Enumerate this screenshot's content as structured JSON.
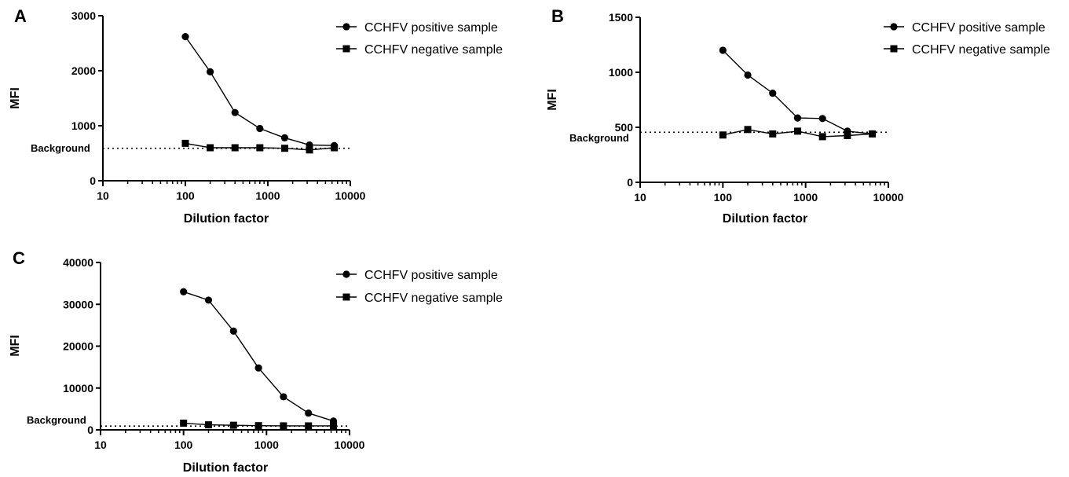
{
  "chart_data": [
    {
      "panel": "A",
      "type": "line",
      "xlabel": "Dilution factor",
      "ylabel": "MFI",
      "xscale": "log",
      "xlim": [
        10,
        10000
      ],
      "xticks": [
        10,
        100,
        1000,
        10000
      ],
      "xtick_labels": [
        "10",
        "100",
        "1000",
        "10000"
      ],
      "ylim": [
        0,
        3000
      ],
      "yticks": [
        0,
        1000,
        2000,
        3000
      ],
      "ytick_labels": [
        "0",
        "1000",
        "2000",
        "3000"
      ],
      "background": {
        "label": "Background",
        "value": 590
      },
      "x": [
        100,
        200,
        400,
        800,
        1600,
        3200,
        6400
      ],
      "series": [
        {
          "name": "CCHFV positive sample",
          "marker": "circle",
          "values": [
            2620,
            1980,
            1240,
            950,
            780,
            650,
            640
          ]
        },
        {
          "name": "CCHFV negative sample",
          "marker": "square",
          "values": [
            680,
            600,
            600,
            600,
            590,
            560,
            600
          ]
        }
      ],
      "grid": false,
      "legend": "right"
    },
    {
      "panel": "B",
      "type": "line",
      "xlabel": "Dilution factor",
      "ylabel": "MFI",
      "xscale": "log",
      "xlim": [
        10,
        10000
      ],
      "xticks": [
        10,
        100,
        1000,
        10000
      ],
      "xtick_labels": [
        "10",
        "100",
        "1000",
        "10000"
      ],
      "ylim": [
        0,
        1500
      ],
      "yticks": [
        0,
        500,
        1000,
        1500
      ],
      "ytick_labels": [
        "0",
        "500",
        "1000",
        "1500"
      ],
      "background": {
        "label": "Background",
        "value": 455
      },
      "x": [
        100,
        200,
        400,
        800,
        1600,
        3200,
        6400
      ],
      "series": [
        {
          "name": "CCHFV positive sample",
          "marker": "circle",
          "values": [
            1200,
            975,
            810,
            585,
            580,
            465,
            440
          ]
        },
        {
          "name": "CCHFV negative sample",
          "marker": "square",
          "values": [
            430,
            480,
            440,
            465,
            415,
            425,
            440
          ]
        }
      ],
      "grid": false,
      "legend": "right"
    },
    {
      "panel": "C",
      "type": "line",
      "xlabel": "Dilution factor",
      "ylabel": "MFI",
      "xscale": "log",
      "xlim": [
        10,
        10000
      ],
      "xticks": [
        10,
        100,
        1000,
        10000
      ],
      "xtick_labels": [
        "10",
        "100",
        "1000",
        "10000"
      ],
      "ylim": [
        0,
        40000
      ],
      "yticks": [
        0,
        10000,
        20000,
        30000,
        40000
      ],
      "ytick_labels": [
        "0",
        "10000",
        "20000",
        "30000",
        "40000"
      ],
      "background": {
        "label": "Background",
        "value": 900
      },
      "x": [
        100,
        200,
        400,
        800,
        1600,
        3200,
        6400
      ],
      "series": [
        {
          "name": "CCHFV positive sample",
          "marker": "circle",
          "values": [
            33000,
            31000,
            23600,
            14800,
            7900,
            4000,
            2100
          ]
        },
        {
          "name": "CCHFV negative sample",
          "marker": "square",
          "values": [
            1600,
            1200,
            1100,
            1000,
            950,
            950,
            950
          ]
        }
      ],
      "grid": false,
      "legend": "right"
    }
  ]
}
